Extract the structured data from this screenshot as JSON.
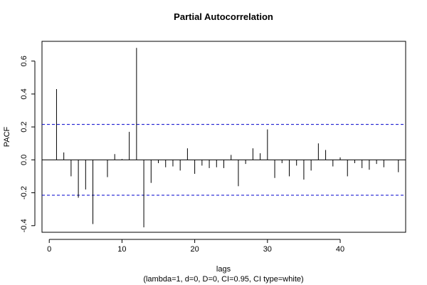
{
  "chart_data": {
    "type": "bar",
    "title": "Partial Autocorrelation",
    "xlabel": "lags",
    "subtitle": "(lambda=1, d=0, D=0, CI=0.95, CI type=white)",
    "ylabel": "PACF",
    "xlim": [
      -1,
      49
    ],
    "ylim": [
      -0.44,
      0.72
    ],
    "xticks": [
      0,
      10,
      20,
      30,
      40
    ],
    "yticks": [
      -0.4,
      -0.2,
      0.0,
      0.2,
      0.4,
      0.6
    ],
    "ytick_labels": [
      "-0.4",
      "-0.2",
      "0.0",
      "0.2",
      "0.4",
      "0.6"
    ],
    "ci": [
      0.215,
      -0.215
    ],
    "ci_color": "#0000cc",
    "line_color": "#000000",
    "lags": [
      1,
      2,
      3,
      4,
      5,
      6,
      7,
      8,
      9,
      10,
      11,
      12,
      13,
      14,
      15,
      16,
      17,
      18,
      19,
      20,
      21,
      22,
      23,
      24,
      25,
      26,
      27,
      28,
      29,
      30,
      31,
      32,
      33,
      34,
      35,
      36,
      37,
      38,
      39,
      40,
      41,
      42,
      43,
      44,
      45,
      46,
      47,
      48
    ],
    "values": [
      0.43,
      0.045,
      -0.1,
      -0.23,
      -0.18,
      -0.39,
      0.0,
      -0.105,
      0.035,
      0.005,
      0.17,
      0.68,
      -0.41,
      -0.14,
      -0.02,
      -0.045,
      -0.04,
      -0.065,
      0.07,
      -0.085,
      -0.035,
      -0.05,
      -0.045,
      -0.05,
      0.03,
      -0.16,
      -0.025,
      0.07,
      0.04,
      0.185,
      -0.11,
      -0.02,
      -0.1,
      -0.035,
      -0.12,
      -0.065,
      0.1,
      0.06,
      -0.04,
      0.015,
      -0.1,
      -0.02,
      -0.05,
      -0.06,
      -0.025,
      -0.045,
      0.0,
      -0.075
    ]
  }
}
